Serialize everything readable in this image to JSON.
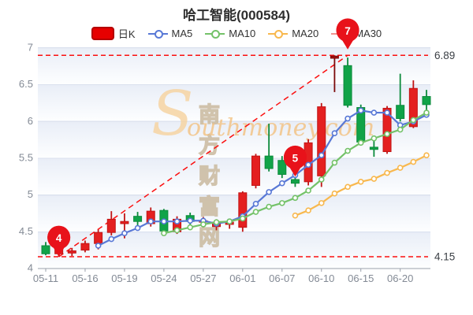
{
  "chart_data": {
    "type": "candlestick",
    "title": "哈工智能(000584)",
    "legend": [
      {
        "label": "日K",
        "type": "kline",
        "color": "#e60000"
      },
      {
        "label": "MA5",
        "type": "line",
        "color": "#5878d6"
      },
      {
        "label": "MA10",
        "type": "line",
        "color": "#74c269"
      },
      {
        "label": "MA20",
        "type": "line",
        "color": "#f8b84e"
      },
      {
        "label": "MA30",
        "type": "line",
        "color": "#f2938f"
      }
    ],
    "ylim": [
      4,
      7
    ],
    "y_tick_labels": [
      "7",
      "6.5",
      "6",
      "5.5",
      "5",
      "4.5",
      "4"
    ],
    "y_tick_values": [
      7,
      6.5,
      6,
      5.5,
      5,
      4.5,
      4
    ],
    "x_tick_labels": [
      "05-11",
      "05-16",
      "05-19",
      "05-24",
      "05-27",
      "06-01",
      "06-07",
      "06-10",
      "06-15",
      "06-20"
    ],
    "candles": [
      {
        "d": "05-11",
        "o": 4.3,
        "c": 4.19,
        "h": 4.35,
        "l": 4.17
      },
      {
        "d": "05-12",
        "o": 4.19,
        "c": 4.26,
        "h": 4.29,
        "l": 4.15
      },
      {
        "d": "05-13",
        "o": 4.2,
        "c": 4.23,
        "h": 4.27,
        "l": 4.16
      },
      {
        "d": "05-16",
        "o": 4.24,
        "c": 4.33,
        "h": 4.37,
        "l": 4.21
      },
      {
        "d": "05-17",
        "o": 4.33,
        "c": 4.48,
        "h": 4.52,
        "l": 4.25
      },
      {
        "d": "05-18",
        "o": 4.48,
        "c": 4.66,
        "h": 4.77,
        "l": 4.44
      },
      {
        "d": "05-19",
        "o": 4.6,
        "c": 4.63,
        "h": 4.74,
        "l": 4.4
      },
      {
        "d": "05-20",
        "o": 4.7,
        "c": 4.63,
        "h": 4.76,
        "l": 4.56
      },
      {
        "d": "05-23",
        "o": 4.6,
        "c": 4.77,
        "h": 4.82,
        "l": 4.56
      },
      {
        "d": "05-24",
        "o": 4.78,
        "c": 4.5,
        "h": 4.8,
        "l": 4.46
      },
      {
        "d": "05-25",
        "o": 4.49,
        "c": 4.66,
        "h": 4.7,
        "l": 4.46
      },
      {
        "d": "05-26",
        "o": 4.71,
        "c": 4.63,
        "h": 4.75,
        "l": 4.59
      },
      {
        "d": "05-27",
        "o": 4.62,
        "c": 4.64,
        "h": 4.69,
        "l": 4.55
      },
      {
        "d": "05-30",
        "o": 4.56,
        "c": 4.62,
        "h": 4.66,
        "l": 4.51
      },
      {
        "d": "05-31",
        "o": 4.59,
        "c": 4.62,
        "h": 4.66,
        "l": 4.53
      },
      {
        "d": "06-01",
        "o": 4.55,
        "c": 5.02,
        "h": 5.04,
        "l": 4.49
      },
      {
        "d": "06-02",
        "o": 5.12,
        "c": 5.52,
        "h": 5.55,
        "l": 5.08
      },
      {
        "d": "06-06",
        "o": 5.52,
        "c": 5.35,
        "h": 5.96,
        "l": 5.31
      },
      {
        "d": "06-07",
        "o": 5.46,
        "c": 5.27,
        "h": 5.52,
        "l": 5.22
      },
      {
        "d": "06-08",
        "o": 5.2,
        "c": 5.15,
        "h": 5.25,
        "l": 5.1
      },
      {
        "d": "06-09",
        "o": 5.17,
        "c": 5.7,
        "h": 5.75,
        "l": 5.12
      },
      {
        "d": "06-10",
        "o": 5.25,
        "c": 6.19,
        "h": 6.24,
        "l": 5.1
      },
      {
        "d": "06-13",
        "o": 6.85,
        "c": 6.88,
        "h": 6.89,
        "l": 6.39,
        "dark": true
      },
      {
        "d": "06-14",
        "o": 6.75,
        "c": 6.21,
        "h": 6.86,
        "l": 6.18
      },
      {
        "d": "06-15",
        "o": 6.18,
        "c": 5.71,
        "h": 6.22,
        "l": 5.68
      },
      {
        "d": "06-16",
        "o": 5.64,
        "c": 5.61,
        "h": 5.76,
        "l": 5.51
      },
      {
        "d": "06-17",
        "o": 5.58,
        "c": 6.17,
        "h": 6.2,
        "l": 5.55
      },
      {
        "d": "06-20",
        "o": 6.21,
        "c": 6.03,
        "h": 6.64,
        "l": 5.99
      },
      {
        "d": "06-21",
        "o": 5.92,
        "c": 6.44,
        "h": 6.55,
        "l": 5.9
      },
      {
        "d": "06-22",
        "o": 6.33,
        "c": 6.22,
        "h": 6.42,
        "l": 6.14
      }
    ],
    "ma5": [
      null,
      null,
      null,
      null,
      4.3,
      4.39,
      4.47,
      4.54,
      4.63,
      4.63,
      4.63,
      4.64,
      4.64,
      4.6,
      4.63,
      4.7,
      4.87,
      5.03,
      5.15,
      5.26,
      5.4,
      5.53,
      5.83,
      6.03,
      6.14,
      6.11,
      6.11,
      5.94,
      5.99,
      6.08
    ],
    "ma10": [
      null,
      null,
      null,
      null,
      null,
      null,
      null,
      null,
      null,
      4.47,
      4.51,
      4.55,
      4.59,
      4.62,
      4.63,
      4.67,
      4.76,
      4.83,
      4.88,
      4.95,
      5.05,
      5.2,
      5.43,
      5.59,
      5.7,
      5.76,
      5.82,
      5.88,
      6.01,
      6.11
    ],
    "ma20": [
      null,
      null,
      null,
      null,
      null,
      null,
      null,
      null,
      null,
      null,
      null,
      null,
      null,
      null,
      null,
      null,
      null,
      null,
      null,
      4.71,
      4.78,
      4.88,
      5.01,
      5.1,
      5.17,
      5.21,
      5.29,
      5.36,
      5.44,
      5.53
    ],
    "annotations": {
      "max_label": "6.89",
      "max_value": 6.89,
      "min_label": "4.15",
      "min_value": 4.15
    },
    "trend_line": {
      "from_index": 1,
      "from_value": 4.15,
      "to_index": 23,
      "to_value": 6.89
    },
    "markers": [
      {
        "label": "4",
        "index": 1,
        "tip_value": 4.15
      },
      {
        "label": "5",
        "index": 19,
        "tip_value": 5.24
      },
      {
        "label": "7",
        "index": 23,
        "tip_value": 6.97
      }
    ],
    "colors": {
      "up_fill": "#e42020",
      "up_stroke": "#c11515",
      "down_fill": "#10a348",
      "down_stroke": "#0c8a3c",
      "dark_fill": "#9e0f0f",
      "dark_stroke": "#7d0b0b",
      "ma5": "#5878d6",
      "ma10": "#74c269",
      "ma20": "#f8b84e",
      "ma30": "#f2938f",
      "dashed_line": "#fb0f0f",
      "balloon": "#e8121a",
      "axis": "#9aa0ab",
      "tick_text": "#838a95",
      "annotation_text": "#3c4046"
    },
    "watermark": {
      "s": "S",
      "cn": "南方财富网",
      "en": "outhmoney.com"
    }
  }
}
